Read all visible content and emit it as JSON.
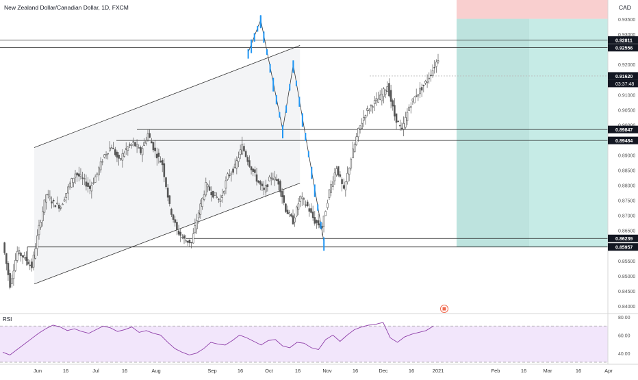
{
  "symbol_title": "New Zealand Dollar/Canadian Dollar, 1D, FXCM",
  "currency": "CAD",
  "flag_icon": "flag-icon",
  "colors": {
    "candle": "#555555",
    "projection": "#2196f3",
    "channel_fill": "#f2f3f5",
    "target_zone": "#c6ebe6",
    "stop_zone": "#f9cfcf",
    "rsi_line": "#8e3ea8",
    "rsi_band": "#f2e6fb",
    "label_bg": "#131722"
  },
  "chart_data": [
    {
      "type": "candlestick",
      "title": "New Zealand Dollar/Canadian Dollar, 1D, FXCM",
      "ylim": [
        0.84,
        0.955
      ],
      "y_ticks": [
        "0.93500",
        "0.93000",
        "0.92500",
        "0.92000",
        "0.91500",
        "0.91000",
        "0.90500",
        "0.90000",
        "0.89500",
        "0.89000",
        "0.88500",
        "0.88000",
        "0.87500",
        "0.87000",
        "0.86500",
        "0.86000",
        "0.85500",
        "0.85000",
        "0.84500",
        "0.84000"
      ],
      "x_ticks": [
        "Jun",
        "16",
        "Jul",
        "16",
        "Aug",
        "Sep",
        "16",
        "Oct",
        "16",
        "Nov",
        "16",
        "Dec",
        "16",
        "2021",
        "Feb",
        "16",
        "Mar",
        "16",
        "Apr"
      ],
      "price_levels": [
        {
          "label": "0.92811",
          "value": 0.92811
        },
        {
          "label": "0.92556",
          "value": 0.92556
        },
        {
          "label": "0.91620",
          "value": 0.9162
        },
        {
          "label": "0.89847",
          "value": 0.89847
        },
        {
          "label": "0.89484",
          "value": 0.89484
        },
        {
          "label": "0.86239",
          "value": 0.86239
        },
        {
          "label": "0.85957",
          "value": 0.85957
        }
      ],
      "countdown": "03:37:48",
      "price_path": [
        0.861,
        0.847,
        0.858,
        0.856,
        0.853,
        0.866,
        0.877,
        0.874,
        0.873,
        0.879,
        0.884,
        0.882,
        0.879,
        0.884,
        0.89,
        0.893,
        0.888,
        0.892,
        0.894,
        0.891,
        0.897,
        0.891,
        0.887,
        0.873,
        0.865,
        0.862,
        0.861,
        0.871,
        0.88,
        0.877,
        0.875,
        0.883,
        0.886,
        0.893,
        0.887,
        0.882,
        0.878,
        0.883,
        0.881,
        0.872,
        0.868,
        0.876,
        0.873,
        0.868,
        0.866,
        0.878,
        0.886,
        0.878,
        0.889,
        0.898,
        0.904,
        0.907,
        0.909,
        0.913,
        0.903,
        0.898,
        0.906,
        0.91,
        0.913,
        0.917,
        0.922
      ],
      "projection_path": [
        {
          "date": "2021-01-06",
          "value": 0.924
        },
        {
          "date": "2021-01-19",
          "value": 0.9348
        },
        {
          "date": "2021-02-11",
          "value": 0.8984
        },
        {
          "date": "2021-02-22",
          "value": 0.9199
        },
        {
          "date": "2021-03-26",
          "value": 0.8612
        }
      ],
      "channel": {
        "upper": [
          {
            "date": "2020-06-01",
            "value": 0.8925
          },
          {
            "date": "2021-03-01",
            "value": 0.9263
          }
        ],
        "lower": [
          {
            "date": "2020-06-01",
            "value": 0.8473
          },
          {
            "date": "2021-03-01",
            "value": 0.8807
          }
        ]
      },
      "position": {
        "entry": 0.8596,
        "target": 0.9351,
        "stop": 0.9425
      }
    },
    {
      "type": "line",
      "label": "RSI",
      "ylim": [
        30,
        80
      ],
      "y_ticks": [
        "80.00",
        "60.00",
        "40.00"
      ],
      "band": [
        30,
        70
      ],
      "values": [
        41,
        38,
        44,
        50,
        56,
        62,
        67,
        71,
        69,
        65,
        67,
        64,
        62,
        66,
        70,
        68,
        64,
        66,
        69,
        63,
        65,
        62,
        60,
        52,
        45,
        41,
        38,
        40,
        45,
        52,
        50,
        49,
        54,
        60,
        57,
        53,
        49,
        54,
        55,
        48,
        46,
        52,
        51,
        46,
        44,
        55,
        60,
        53,
        60,
        66,
        69,
        71,
        72,
        74,
        57,
        52,
        58,
        61,
        63,
        65,
        70
      ]
    }
  ]
}
